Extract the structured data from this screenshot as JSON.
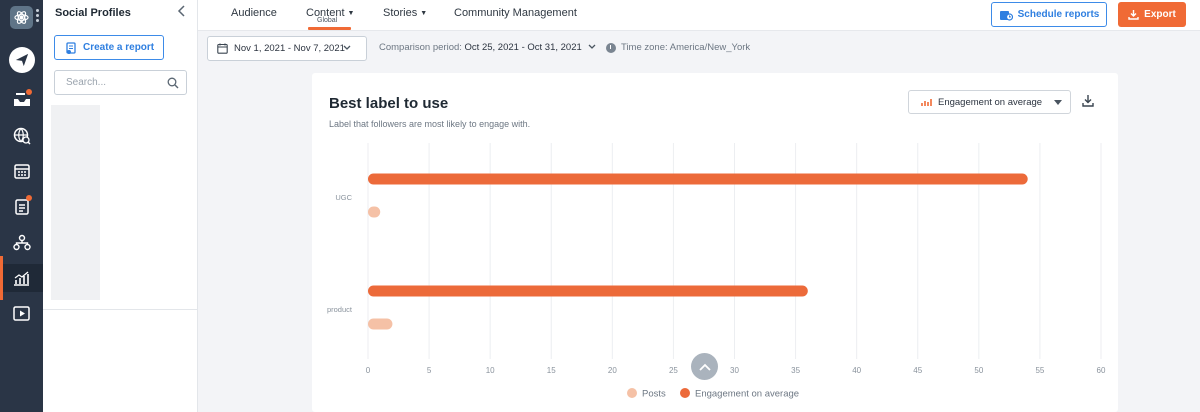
{
  "sidebar": {
    "title": "Social Profiles",
    "create_report_label": "Create a report",
    "search_placeholder": "Search..."
  },
  "nav": {
    "tabs": [
      {
        "label": "Audience",
        "dropdown": false
      },
      {
        "label": "Content",
        "dropdown": true,
        "sublabel": "Global",
        "active": true
      },
      {
        "label": "Stories",
        "dropdown": true
      },
      {
        "label": "Community Management",
        "dropdown": false
      }
    ],
    "schedule_reports_label": "Schedule reports",
    "export_label": "Export"
  },
  "filters": {
    "date_range": "Nov 1, 2021 - Nov 7, 2021",
    "comparison_label": "Comparison period:",
    "comparison_value": "Oct 25, 2021 - Oct 31, 2021",
    "timezone": "Time zone: America/New_York"
  },
  "card": {
    "title": "Best label to use",
    "subtitle": "Label that followers are most likely to engage with.",
    "metric_select": "Engagement on average"
  },
  "colors": {
    "accent": "#f06a35",
    "posts": "#f5c1a6",
    "engagement": "#ec6a3a",
    "link": "#2f7fe0",
    "rail": "#2a3546"
  },
  "chart_data": {
    "type": "bar",
    "orientation": "horizontal",
    "categories": [
      "UGC",
      "product"
    ],
    "series": [
      {
        "name": "Engagement on average",
        "values": [
          54,
          36
        ]
      },
      {
        "name": "Posts",
        "values": [
          1,
          2
        ]
      }
    ],
    "xlim": [
      0,
      60
    ],
    "xticks": [
      0,
      5,
      10,
      15,
      20,
      25,
      30,
      35,
      40,
      45,
      50,
      55,
      60
    ],
    "grid": true,
    "legend": "bottom"
  }
}
